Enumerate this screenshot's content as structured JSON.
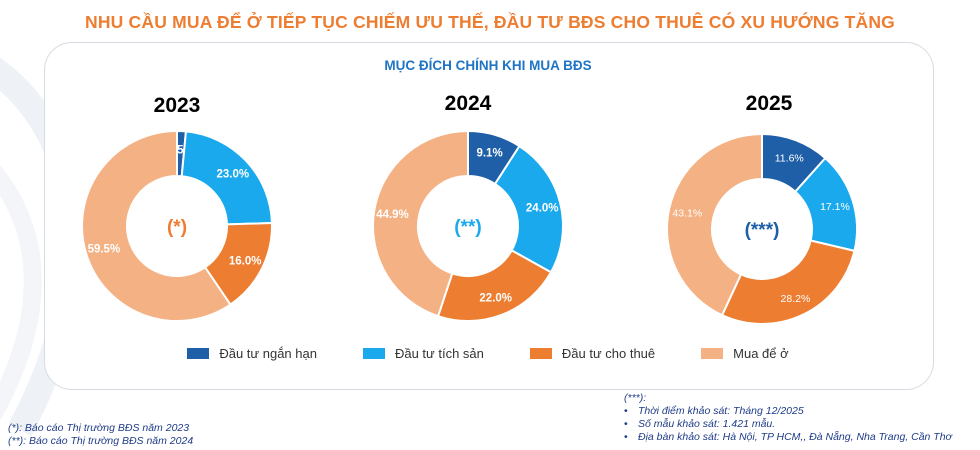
{
  "title": "NHU CẦU MUA ĐỂ Ở TIẾP TỤC CHIẾM ƯU THẾ, ĐẦU TƯ BĐS CHO THUÊ CÓ XU HƯỚNG TĂNG",
  "colors": {
    "dau_tu_ngan_han": "#1f5fa8",
    "dau_tu_tich_san": "#1aa9ec",
    "dau_tu_cho_thue": "#ed7d31",
    "mua_de_o": "#f4b183"
  },
  "chart_data": {
    "type": "pie",
    "variant": "donut",
    "title": "MỤC ĐÍCH CHÍNH KHI MUA BĐS",
    "categories": [
      "Đầu tư ngắn hạn",
      "Đầu tư tích sản",
      "Đầu tư cho thuê",
      "Mua để ở"
    ],
    "legend_position": "bottom",
    "charts": [
      {
        "year": "2023",
        "year_color": "#ed7d31",
        "center_label": "(*)",
        "center_color": "#ed7d31",
        "label_font": "bold",
        "values": [
          1.5,
          23.0,
          16.0,
          59.5
        ],
        "labels": [
          "1.5%",
          "23.0%",
          "16.0%",
          "59.5%"
        ]
      },
      {
        "year": "2024",
        "year_color": "#1aa9ec",
        "center_label": "(**)",
        "center_color": "#1aa9ec",
        "label_font": "bold",
        "values": [
          9.1,
          24.0,
          22.0,
          44.9
        ],
        "labels": [
          "9.1%",
          "24.0%",
          "22.0%",
          "44.9%"
        ]
      },
      {
        "year": "2025",
        "year_color": "#1f5fa8",
        "center_label": "(***)",
        "center_color": "#1f5fa8",
        "label_font": "normal",
        "values": [
          11.6,
          17.1,
          28.2,
          43.1
        ],
        "labels": [
          "11.6%",
          "17.1%",
          "28.2%",
          "43.1%"
        ]
      }
    ]
  },
  "notes": {
    "left": [
      "(*): Báo cáo Thị trường BĐS năm 2023",
      "(**): Báo cáo Thị trường BĐS năm 2024"
    ],
    "right_head": "(***):",
    "right_items": [
      "Thời điểm khảo sát: Tháng 12/2025",
      "Số mẫu khảo sát: 1.421 mẫu.",
      "Địa bàn khảo sát: Hà Nội, TP HCM,, Đà Nẵng, Nha Trang, Cần Thơ"
    ]
  }
}
